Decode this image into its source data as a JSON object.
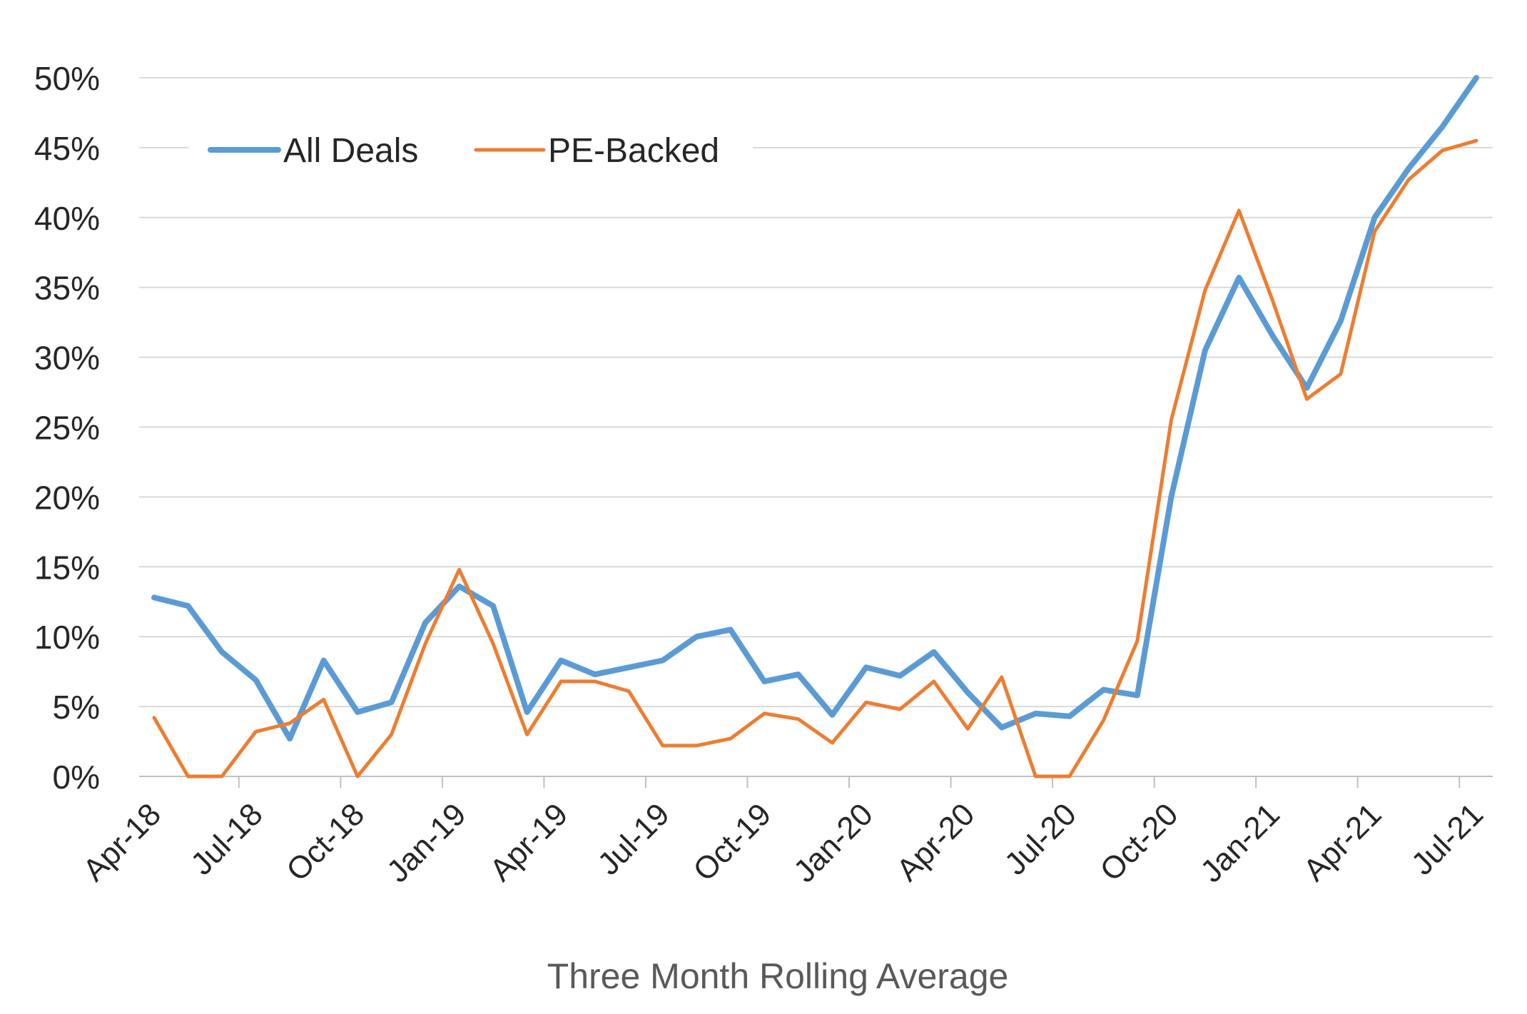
{
  "chart_data": {
    "type": "line",
    "xlabel": "Three Month Rolling Average",
    "ylabel": "",
    "ylim": [
      0,
      0.5
    ],
    "yticks": [
      0,
      0.05,
      0.1,
      0.15,
      0.2,
      0.25,
      0.3,
      0.35,
      0.4,
      0.45,
      0.5
    ],
    "ytick_labels": [
      "0%",
      "5%",
      "10%",
      "15%",
      "20%",
      "25%",
      "30%",
      "35%",
      "40%",
      "45%",
      "50%"
    ],
    "y_grid": true,
    "legend_position": "top-left",
    "x": [
      "Apr-18",
      "May-18",
      "Jun-18",
      "Jul-18",
      "Aug-18",
      "Sep-18",
      "Oct-18",
      "Nov-18",
      "Dec-18",
      "Jan-19",
      "Feb-19",
      "Mar-19",
      "Apr-19",
      "May-19",
      "Jun-19",
      "Jul-19",
      "Aug-19",
      "Sep-19",
      "Oct-19",
      "Nov-19",
      "Dec-19",
      "Jan-20",
      "Feb-20",
      "Mar-20",
      "Apr-20",
      "May-20",
      "Jun-20",
      "Jul-20",
      "Aug-20",
      "Sep-20",
      "Oct-20",
      "Nov-20",
      "Dec-20",
      "Jan-21",
      "Feb-21",
      "Mar-21",
      "Apr-21",
      "May-21",
      "Jun-21",
      "Jul-21"
    ],
    "x_tick_labels": [
      "Apr-18",
      "Jul-18",
      "Oct-18",
      "Jan-19",
      "Apr-19",
      "Jul-19",
      "Oct-19",
      "Jan-20",
      "Apr-20",
      "Jul-20",
      "Oct-20",
      "Jan-21",
      "Apr-21",
      "Jul-21"
    ],
    "series": [
      {
        "name": "All Deals",
        "color": "#5b9bd5",
        "values": [
          0.128,
          0.122,
          0.089,
          0.069,
          0.027,
          0.083,
          0.046,
          0.053,
          0.11,
          0.136,
          0.122,
          0.046,
          0.083,
          0.073,
          0.078,
          0.083,
          0.1,
          0.105,
          0.068,
          0.073,
          0.044,
          0.078,
          0.072,
          0.089,
          0.06,
          0.035,
          0.045,
          0.043,
          0.062,
          0.058,
          0.2,
          0.305,
          0.357,
          0.315,
          0.278,
          0.326,
          0.4,
          0.435,
          0.465,
          0.5
        ]
      },
      {
        "name": "PE-Backed",
        "color": "#ed7d31",
        "values": [
          0.042,
          0.0,
          0.0,
          0.032,
          0.038,
          0.055,
          0.0,
          0.03,
          0.095,
          0.148,
          0.095,
          0.03,
          0.068,
          0.068,
          0.061,
          0.022,
          0.022,
          0.027,
          0.045,
          0.041,
          0.024,
          0.053,
          0.048,
          0.068,
          0.034,
          0.071,
          0.0,
          0.0,
          0.04,
          0.097,
          0.255,
          0.348,
          0.405,
          0.34,
          0.27,
          0.288,
          0.39,
          0.427,
          0.448,
          0.455
        ]
      }
    ]
  }
}
